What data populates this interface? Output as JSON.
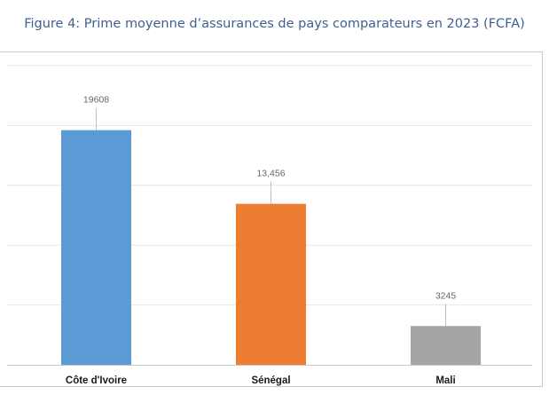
{
  "caption": "Figure 4: Prime moyenne d’assurances de pays comparateurs en 2023 (FCFA)",
  "chart_data": {
    "type": "bar",
    "categories": [
      "Côte d'Ivoire",
      "Sénégal",
      "Mali"
    ],
    "values": [
      19608,
      13456,
      3245
    ],
    "data_labels": [
      "19608",
      "13,456",
      "3245"
    ],
    "colors": [
      "#5b9bd5",
      "#ed7d31",
      "#a5a5a5"
    ],
    "ylim": [
      0,
      25000
    ],
    "grid": true,
    "legend": "none"
  }
}
